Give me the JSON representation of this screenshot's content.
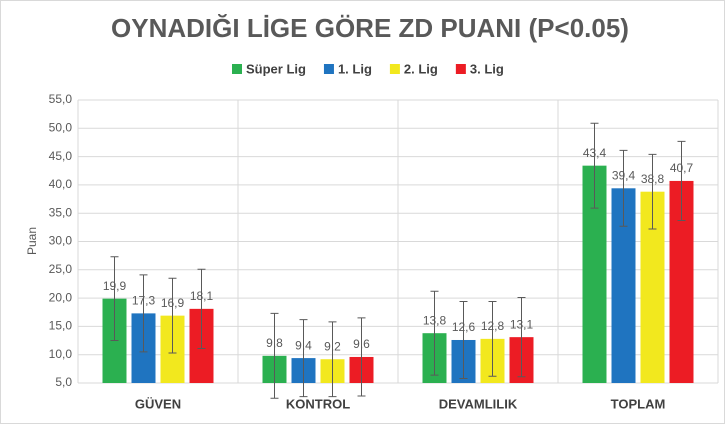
{
  "chart_data": {
    "type": "bar",
    "title": "OYNADIĞI LİGE GÖRE ZD PUANI (P<0.05)",
    "y_label": "Puan",
    "categories": [
      "GÜVEN",
      "KONTROL",
      "DEVAMLILIK",
      "TOPLAM"
    ],
    "series": [
      {
        "name": "Süper Lig",
        "color": "#2bb050",
        "values": [
          19.9,
          9.8,
          13.8,
          43.4
        ],
        "value_labels": [
          "19,9",
          "9,8",
          "13,8",
          "43,4"
        ],
        "errors": [
          7.4,
          7.5,
          7.4,
          7.5
        ]
      },
      {
        "name": "1. Lig",
        "color": "#1f74c0",
        "values": [
          17.3,
          9.4,
          12.6,
          39.4
        ],
        "value_labels": [
          "17,3",
          "9,4",
          "12,6",
          "39,4"
        ],
        "errors": [
          6.8,
          6.8,
          6.8,
          6.7
        ]
      },
      {
        "name": "2. Lig",
        "color": "#f2e81e",
        "values": [
          16.9,
          9.2,
          12.8,
          38.8
        ],
        "value_labels": [
          "16,9",
          "9,2",
          "12,8",
          "38,8"
        ],
        "errors": [
          6.6,
          6.6,
          6.6,
          6.6
        ]
      },
      {
        "name": "3. Lig",
        "color": "#ec1c24",
        "values": [
          18.1,
          9.6,
          13.1,
          40.7
        ],
        "value_labels": [
          "18,1",
          "9,6",
          "13,1",
          "40,7"
        ],
        "errors": [
          7.0,
          6.9,
          7.0,
          7.0
        ]
      }
    ],
    "ylim": [
      5,
      55
    ],
    "yticks": [
      {
        "value": 5,
        "label": "5,0"
      },
      {
        "value": 10,
        "label": "10,0"
      },
      {
        "value": 15,
        "label": "15,0"
      },
      {
        "value": 20,
        "label": "20,0"
      },
      {
        "value": 25,
        "label": "25,0"
      },
      {
        "value": 30,
        "label": "30,0"
      },
      {
        "value": 35,
        "label": "35,0"
      },
      {
        "value": 40,
        "label": "40,0"
      },
      {
        "value": 45,
        "label": "45,0"
      },
      {
        "value": 50,
        "label": "50,0"
      },
      {
        "value": 55,
        "label": "55,0"
      }
    ],
    "grid": true,
    "legend": "top"
  }
}
